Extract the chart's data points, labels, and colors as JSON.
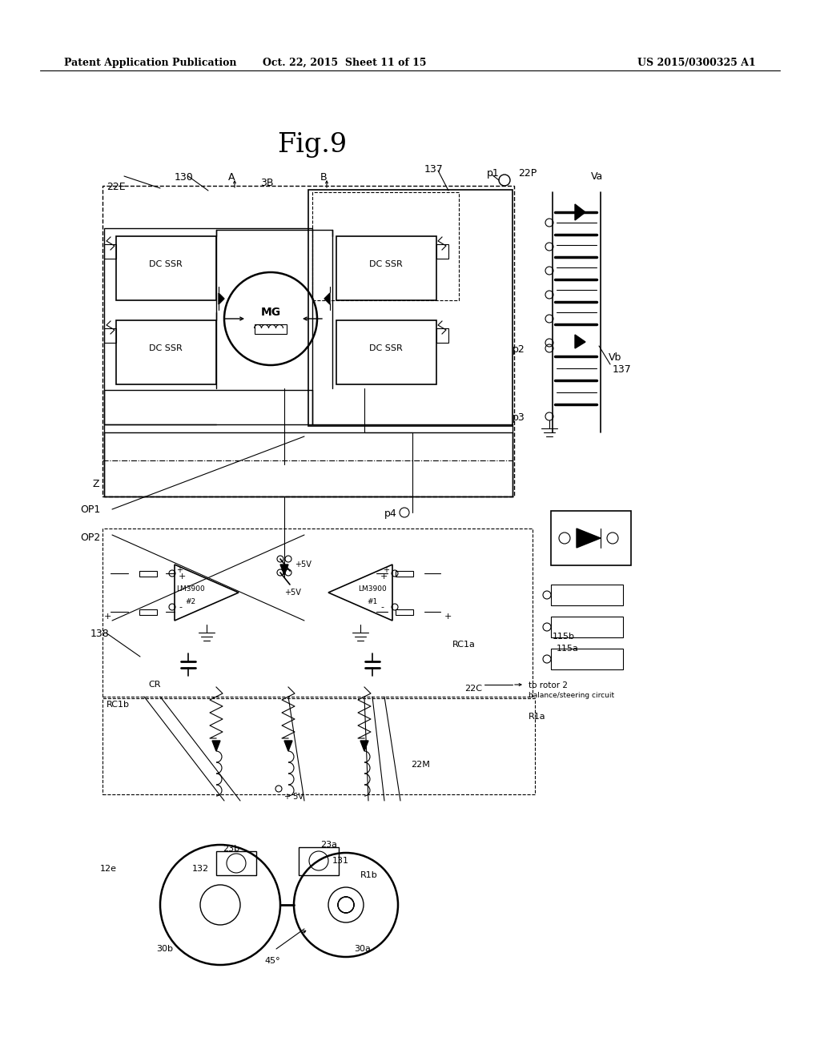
{
  "bg_color": "#ffffff",
  "header_left": "Patent Application Publication",
  "header_mid": "Oct. 22, 2015  Sheet 11 of 15",
  "header_right": "US 2015/0300325 A1",
  "fig_title": "Fig.9",
  "text_color": "#000000",
  "line_color": "#000000"
}
